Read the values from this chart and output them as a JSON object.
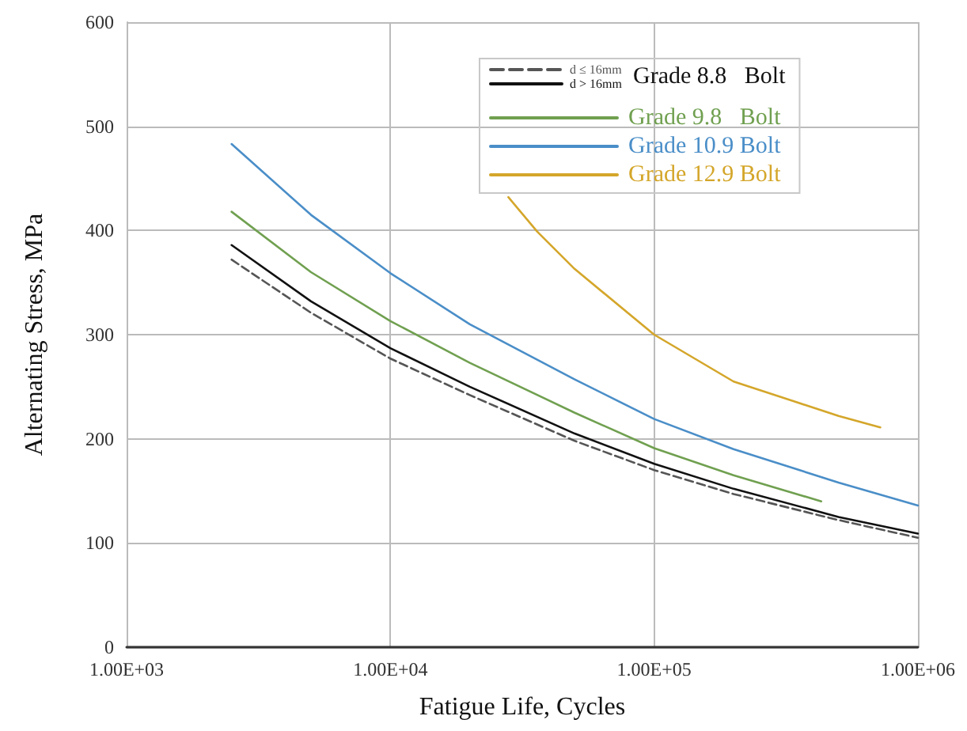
{
  "chart_data": {
    "type": "line",
    "xlabel": "Fatigue Life, Cycles",
    "ylabel": "Alternating Stress, MPa",
    "log": "x",
    "grid": true,
    "legend": "top right",
    "marker": "none",
    "line_style": "solid",
    "annotations": [
      "Grade 8.8   Bolt"
    ],
    "xlim": [
      1000,
      1000000
    ],
    "xticks": [
      {
        "value": 1000,
        "label": "1.00E+03"
      },
      {
        "value": 10000,
        "label": "1.00E+04"
      },
      {
        "value": 100000,
        "label": "1.00E+05"
      },
      {
        "value": 1000000,
        "label": "1.00E+06"
      }
    ],
    "ylim": [
      0,
      600
    ],
    "yticks": [
      0,
      100,
      200,
      300,
      400,
      500,
      600
    ],
    "series": [
      {
        "name": "d ≤ 16mm",
        "color": "#555555",
        "line_style": "dashed",
        "x": [
          2500,
          5000,
          10000,
          20000,
          50000,
          100000,
          200000,
          500000,
          1000000
        ],
        "values": [
          372,
          321,
          277,
          242,
          198,
          170,
          147,
          122,
          105
        ]
      },
      {
        "name": "d > 16mm",
        "color": "#111111",
        "x": [
          2500,
          5000,
          10000,
          20000,
          50000,
          100000,
          200000,
          500000,
          1000000
        ],
        "values": [
          386,
          332,
          287,
          250,
          205,
          176,
          152,
          125,
          109
        ]
      },
      {
        "name": "Grade 9.8   Bolt",
        "color": "#70a050",
        "x": [
          2500,
          5000,
          10000,
          20000,
          50000,
          100000,
          200000,
          430000
        ],
        "values": [
          418,
          360,
          313,
          273,
          225,
          191,
          165,
          140
        ]
      },
      {
        "name": "Grade 10.9 Bolt",
        "color": "#4a8ec8",
        "x": [
          2500,
          5000,
          10000,
          20000,
          50000,
          100000,
          200000,
          500000,
          1000000
        ],
        "values": [
          483,
          415,
          359,
          310,
          257,
          219,
          190,
          158,
          136
        ]
      },
      {
        "name": "Grade 12.9 Bolt",
        "color": "#d4a62a",
        "x": [
          28000,
          36000,
          50000,
          100000,
          200000,
          500000,
          720000
        ],
        "values": [
          432,
          399,
          363,
          300,
          255,
          222,
          211
        ]
      }
    ]
  }
}
